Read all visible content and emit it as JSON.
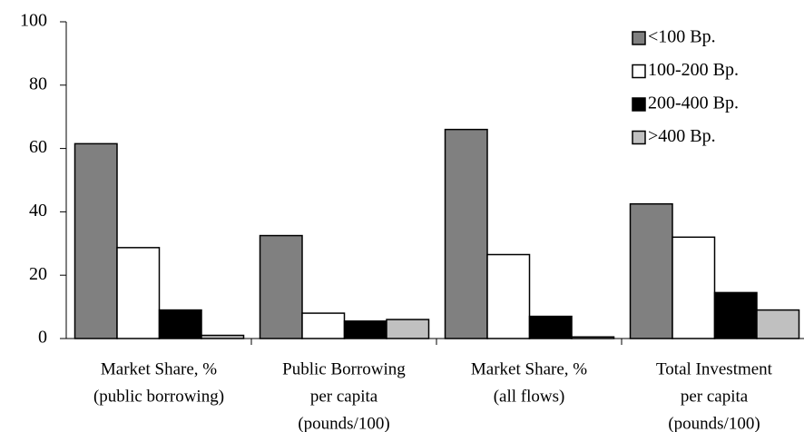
{
  "chart_data": {
    "type": "bar",
    "categories": [
      [
        "Market Share, %",
        "(public borrowing)"
      ],
      [
        "Public Borrowing",
        "per capita",
        "(pounds/100)"
      ],
      [
        "Market Share, %",
        "(all flows)"
      ],
      [
        "Total Investment",
        "per capita",
        "(pounds/100)"
      ]
    ],
    "series": [
      {
        "name": "<100 Bp.",
        "color": "#808080",
        "values": [
          61.5,
          32.5,
          66,
          42.5
        ]
      },
      {
        "name": "100-200 Bp.",
        "color": "#ffffff",
        "values": [
          28.7,
          8,
          26.5,
          32
        ]
      },
      {
        "name": "200-400 Bp.",
        "color": "#000000",
        "values": [
          9,
          5.5,
          7,
          14.5
        ]
      },
      {
        "name": ">400 Bp.",
        "color": "#c0c0c0",
        "values": [
          1,
          6,
          0.5,
          9
        ]
      }
    ],
    "ylim": [
      0,
      100
    ],
    "yticks": [
      0,
      20,
      40,
      60,
      80,
      100
    ],
    "legend": "top-right",
    "grid": false
  }
}
